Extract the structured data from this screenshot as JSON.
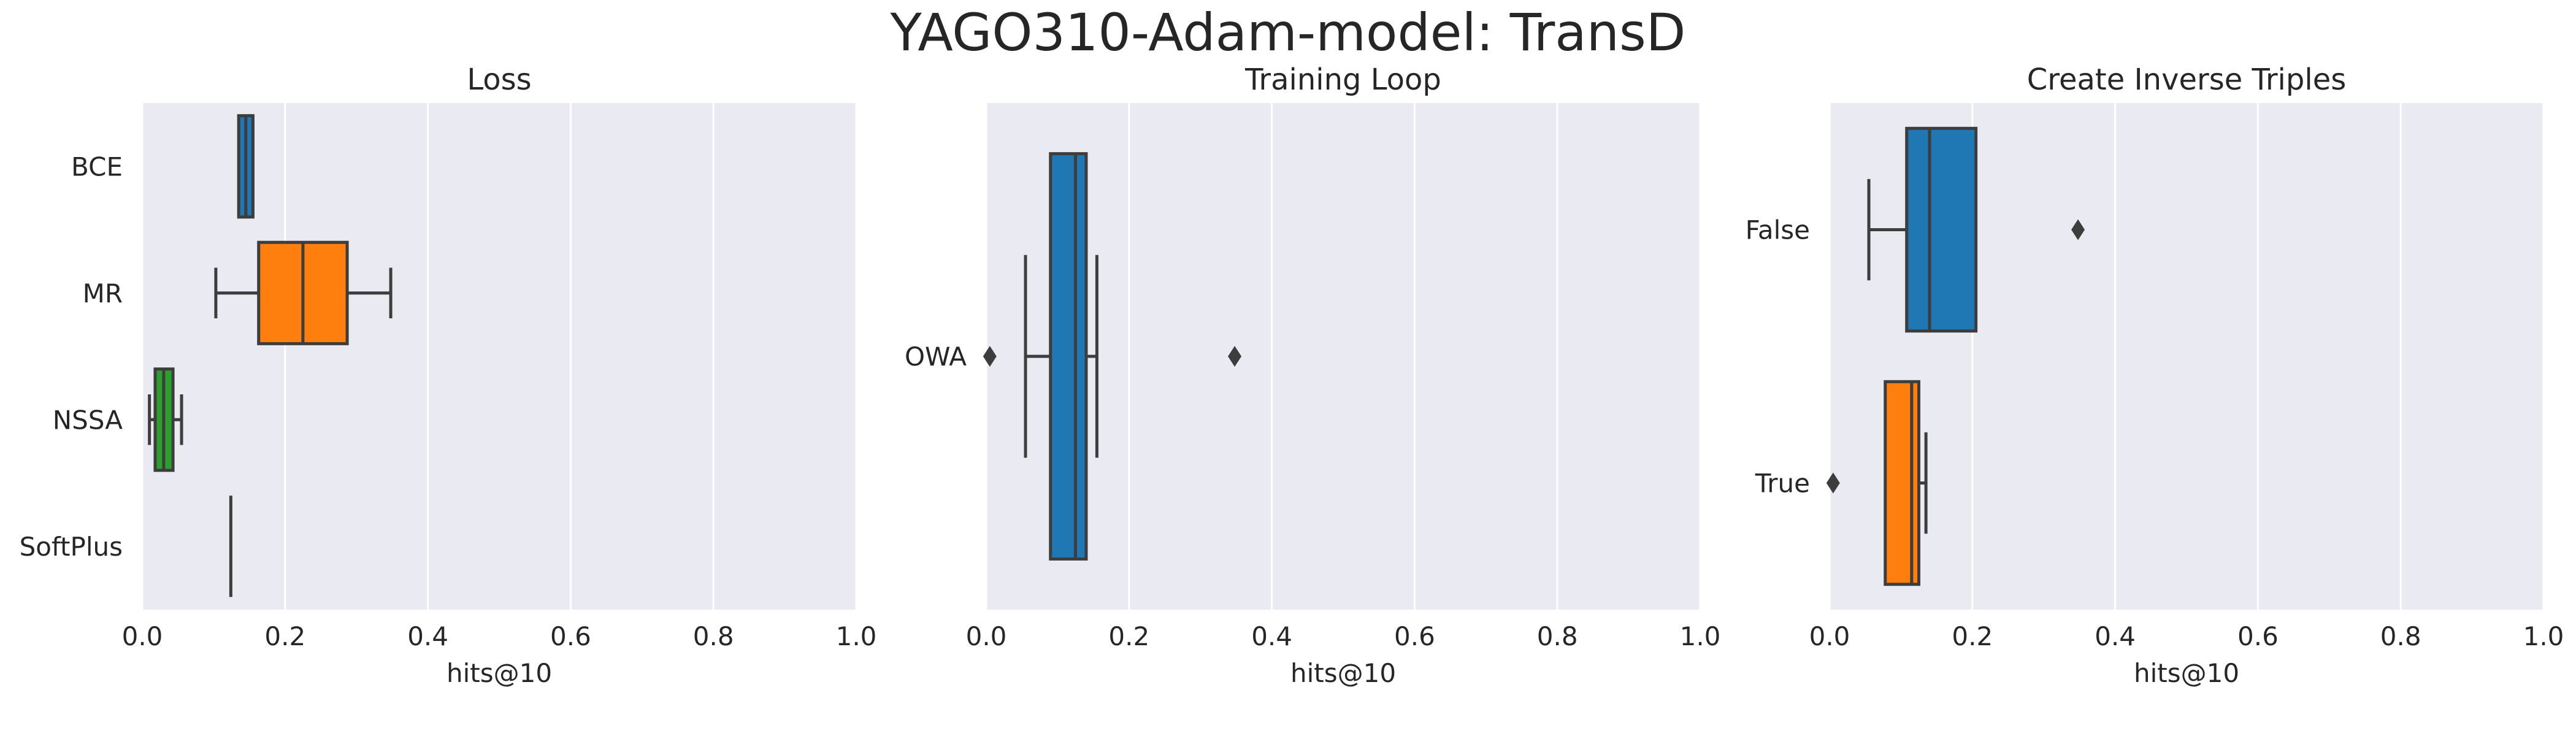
{
  "figure": {
    "title": "YAGO310-Adam-model: TransD"
  },
  "chart_data": [
    {
      "type": "box",
      "title": "Loss",
      "xlabel": "hits@10",
      "ylabel": "",
      "xlim": [
        0,
        1.0
      ],
      "xticks": [
        "0.0",
        "0.2",
        "0.4",
        "0.6",
        "0.8",
        "1.0"
      ],
      "grid": true,
      "categories": [
        "BCE",
        "MR",
        "NSSA",
        "SoftPlus"
      ],
      "boxes": [
        {
          "category": "BCE",
          "whislo": 0.135,
          "q1": 0.135,
          "med": 0.145,
          "q3": 0.155,
          "whishi": 0.155,
          "fliers": [],
          "color": "#1f77b4"
        },
        {
          "category": "MR",
          "whislo": 0.103,
          "q1": 0.163,
          "med": 0.225,
          "q3": 0.287,
          "whishi": 0.348,
          "fliers": [],
          "color": "#ff7f0e"
        },
        {
          "category": "NSSA",
          "whislo": 0.01,
          "q1": 0.018,
          "med": 0.03,
          "q3": 0.043,
          "whishi": 0.055,
          "fliers": [],
          "color": "#2ca02c"
        },
        {
          "category": "SoftPlus",
          "whislo": 0.124,
          "q1": 0.124,
          "med": 0.124,
          "q3": 0.124,
          "whishi": 0.124,
          "fliers": [],
          "color": "#d62728"
        }
      ]
    },
    {
      "type": "box",
      "title": "Training Loop",
      "xlabel": "hits@10",
      "ylabel": "",
      "xlim": [
        0,
        1.0
      ],
      "xticks": [
        "0.0",
        "0.2",
        "0.4",
        "0.6",
        "0.8",
        "1.0"
      ],
      "grid": true,
      "categories": [
        "OWA"
      ],
      "boxes": [
        {
          "category": "OWA",
          "whislo": 0.055,
          "q1": 0.09,
          "med": 0.125,
          "q3": 0.14,
          "whishi": 0.155,
          "fliers": [
            0.005,
            0.348
          ],
          "color": "#1f77b4"
        }
      ]
    },
    {
      "type": "box",
      "title": "Create Inverse Triples",
      "xlabel": "hits@10",
      "ylabel": "",
      "xlim": [
        0,
        1.0
      ],
      "xticks": [
        "0.0",
        "0.2",
        "0.4",
        "0.6",
        "0.8",
        "1.0"
      ],
      "grid": true,
      "categories": [
        "False",
        "True"
      ],
      "boxes": [
        {
          "category": "False",
          "whislo": 0.055,
          "q1": 0.108,
          "med": 0.14,
          "q3": 0.205,
          "whishi": 0.205,
          "fliers": [
            0.348
          ],
          "color": "#1f77b4"
        },
        {
          "category": "True",
          "whislo": 0.078,
          "q1": 0.078,
          "med": 0.115,
          "q3": 0.125,
          "whishi": 0.135,
          "fliers": [
            0.005
          ],
          "color": "#ff7f0e"
        }
      ]
    }
  ],
  "style": {
    "axes_bg": "#eaeaf2",
    "grid_color": "#ffffff",
    "line_color": "#3d3d3d",
    "text_color": "#262626"
  }
}
